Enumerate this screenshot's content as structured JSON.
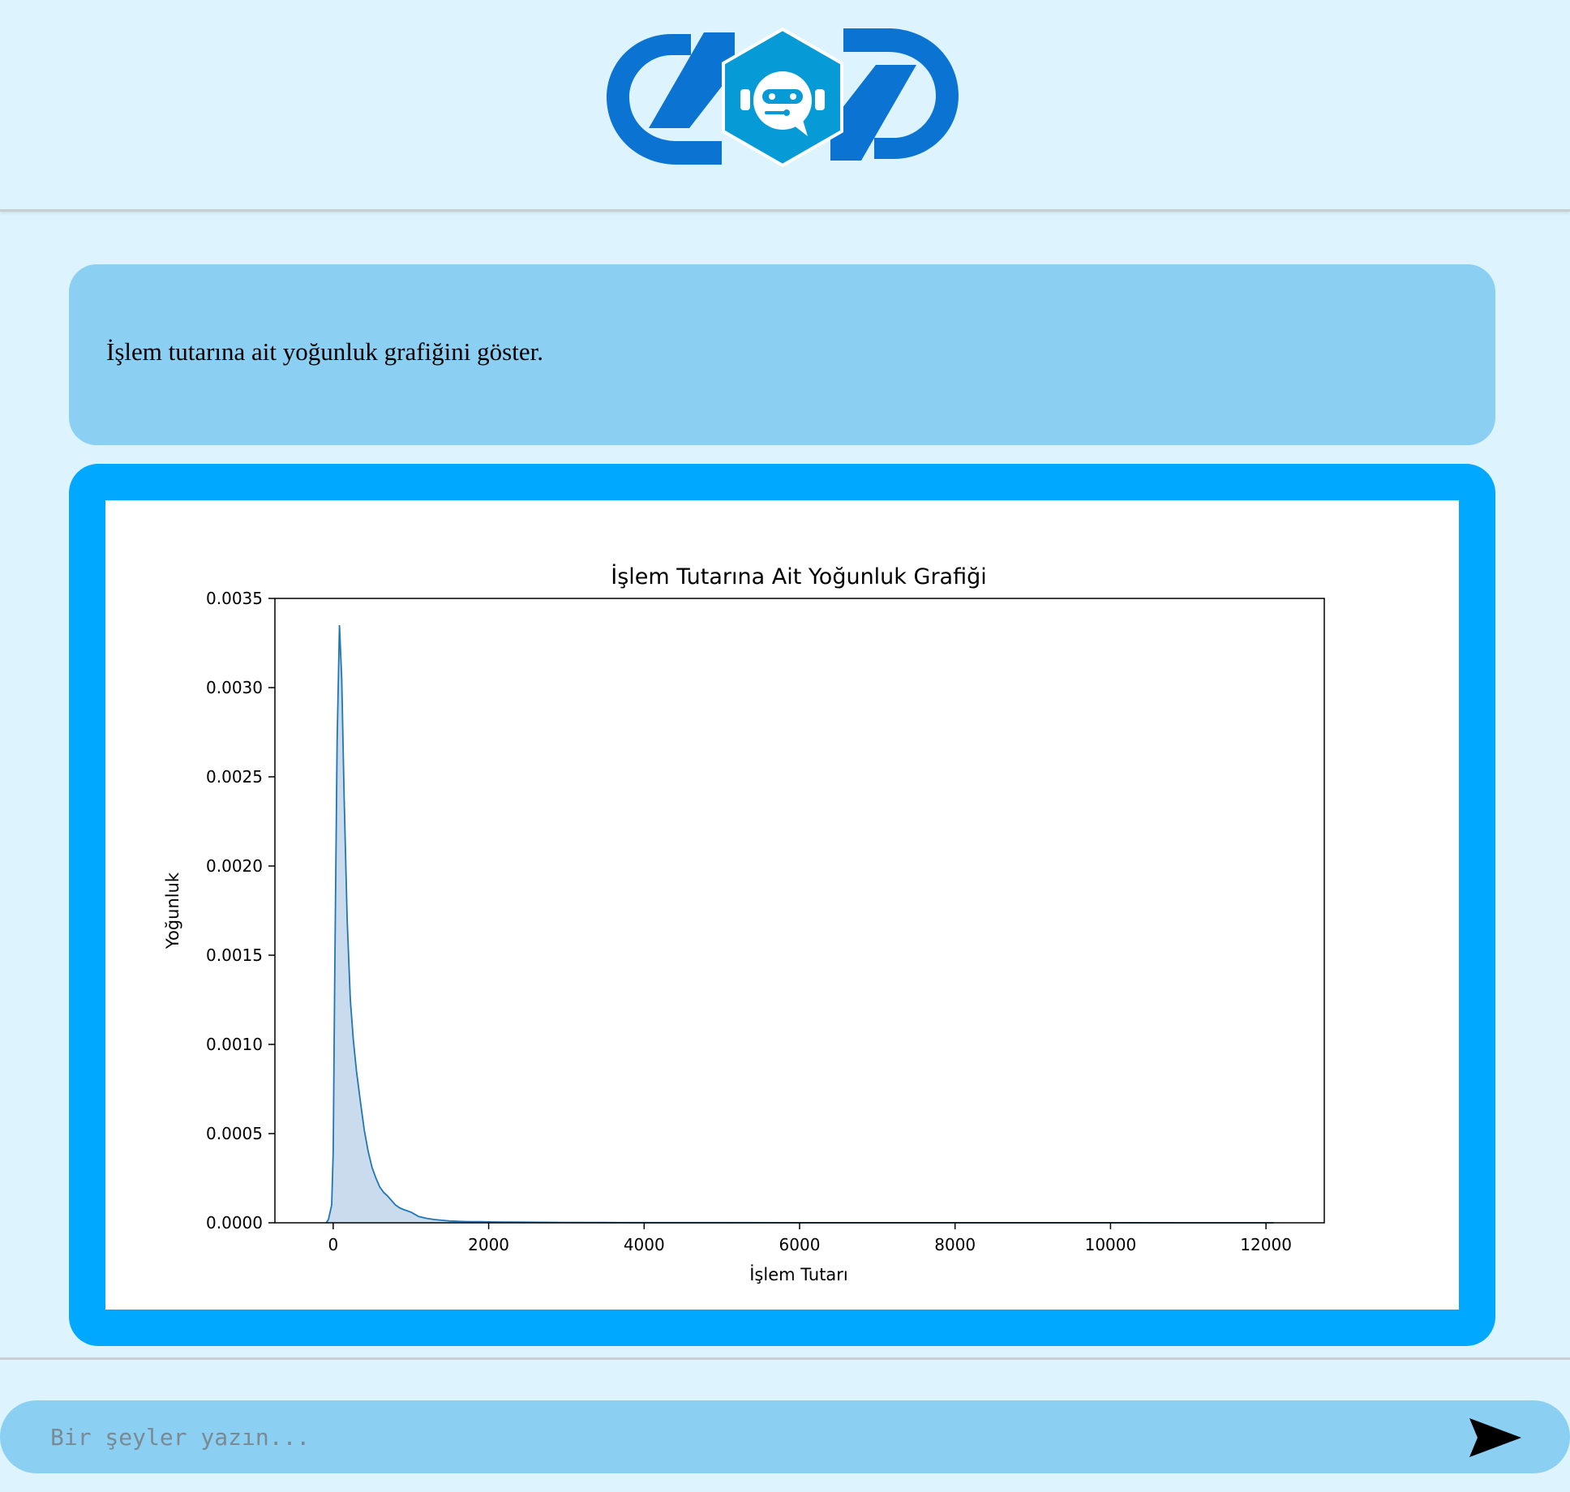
{
  "header": {
    "logo_icon": "robot-chat-exchange-logo",
    "colors": {
      "arrows": "#0b73d2",
      "hexagon": "#069bd6",
      "background": "#ddf3fd"
    }
  },
  "conversation": {
    "user_message": "İşlem tutarına ait yoğunluk grafiğini göster.",
    "bot_message_colors": {
      "frame": "#00a8ff",
      "user_bubble": "#8bcff2"
    }
  },
  "chart_data": {
    "type": "area",
    "title": "İşlem Tutarına Ait Yoğunluk Grafiği",
    "xlabel": "İşlem Tutarı",
    "ylabel": "Yoğunluk",
    "xlim": [
      -750,
      12750
    ],
    "ylim": [
      0,
      0.0035
    ],
    "x_ticks": [
      0,
      2000,
      4000,
      6000,
      8000,
      10000,
      12000
    ],
    "x_tick_labels": [
      "0",
      "2000",
      "4000",
      "6000",
      "8000",
      "10000",
      "12000"
    ],
    "y_ticks": [
      0,
      0.0005,
      0.001,
      0.0015,
      0.002,
      0.0025,
      0.003,
      0.0035
    ],
    "y_tick_labels": [
      "0.0000",
      "0.0005",
      "0.0010",
      "0.0015",
      "0.0020",
      "0.0025",
      "0.0030",
      "0.0035"
    ],
    "grid": false,
    "series": [
      {
        "color": "#1f77b4",
        "fill_color": "#c6d9eb",
        "x": [
          -90,
          -60,
          -20,
          0,
          20,
          50,
          80,
          110,
          140,
          180,
          220,
          260,
          300,
          350,
          400,
          450,
          500,
          550,
          600,
          650,
          700,
          750,
          800,
          850,
          900,
          1000,
          1100,
          1200,
          1300,
          1400,
          1500,
          1600,
          1700,
          1800,
          1900,
          2000,
          2200,
          2500,
          3000,
          3500,
          4000,
          5000,
          6000,
          7000,
          8000,
          9000,
          10000,
          11000,
          12000,
          12100
        ],
        "y": [
          0,
          2e-05,
          0.0001,
          0.0004,
          0.0014,
          0.0027,
          0.00335,
          0.00305,
          0.0024,
          0.0017,
          0.00125,
          0.00102,
          0.00085,
          0.00068,
          0.00052,
          0.0004,
          0.00031,
          0.00025,
          0.0002,
          0.00017,
          0.00015,
          0.000125,
          0.0001,
          8.5e-05,
          7.5e-05,
          6e-05,
          3.5e-05,
          2.5e-05,
          1.8e-05,
          1.4e-05,
          1e-05,
          8e-06,
          7e-06,
          6e-06,
          6e-06,
          5e-06,
          4e-06,
          3e-06,
          2e-06,
          1.5e-06,
          1e-06,
          8e-07,
          6e-07,
          4e-07,
          4e-07,
          3e-07,
          3e-07,
          2e-07,
          2e-07,
          0
        ]
      }
    ]
  },
  "input": {
    "placeholder": "Bir şeyler yazın...",
    "value": "",
    "send_icon": "send-arrow-icon"
  }
}
